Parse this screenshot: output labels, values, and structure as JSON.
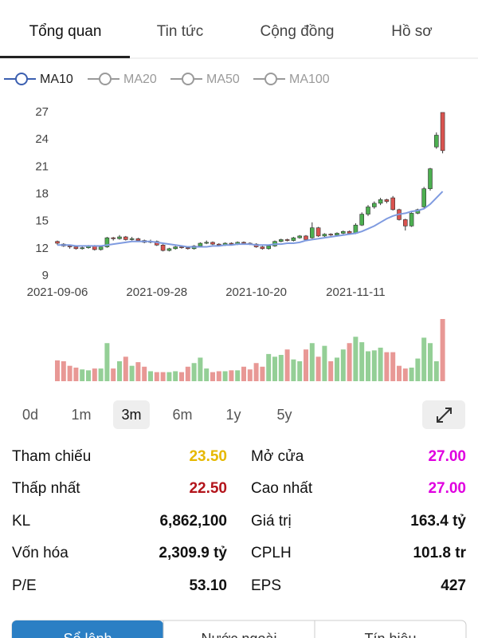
{
  "tabs": {
    "items": [
      "Tổng quan",
      "Tin tức",
      "Cộng đồng",
      "Hồ sơ"
    ],
    "active": 0
  },
  "ma_legend": [
    {
      "name": "MA10",
      "color": "#3b5fb0",
      "active": true
    },
    {
      "name": "MA20",
      "color": "#9a9a9a",
      "active": false
    },
    {
      "name": "MA50",
      "color": "#9a9a9a",
      "active": false
    },
    {
      "name": "MA100",
      "color": "#9a9a9a",
      "active": false
    }
  ],
  "chart_data": {
    "type": "candlestick",
    "categories": [
      "2021-09-06",
      null,
      null,
      null,
      null,
      null,
      null,
      null,
      null,
      null,
      null,
      null,
      null,
      null,
      null,
      null,
      "2021-09-28",
      null,
      null,
      null,
      null,
      null,
      null,
      null,
      null,
      null,
      null,
      null,
      null,
      null,
      null,
      null,
      "2021-10-20",
      null,
      null,
      null,
      null,
      null,
      null,
      null,
      null,
      null,
      null,
      null,
      null,
      null,
      null,
      null,
      "2021-11-11",
      null,
      null,
      null,
      null,
      null,
      null,
      null,
      null,
      null,
      null,
      null,
      null,
      null,
      null
    ],
    "ohlc": [
      [
        12.8,
        12.9,
        12.4,
        12.6
      ],
      [
        12.5,
        12.6,
        12.2,
        12.3
      ],
      [
        12.3,
        12.4,
        12.0,
        12.2
      ],
      [
        12.2,
        12.3,
        11.9,
        12.0
      ],
      [
        12.0,
        12.3,
        11.9,
        12.1
      ],
      [
        12.1,
        12.4,
        12.0,
        12.3
      ],
      [
        12.3,
        12.4,
        11.8,
        11.9
      ],
      [
        11.9,
        12.3,
        11.8,
        12.2
      ],
      [
        12.2,
        13.3,
        12.1,
        13.2
      ],
      [
        13.2,
        13.3,
        12.9,
        13.1
      ],
      [
        13.1,
        13.5,
        13.0,
        13.3
      ],
      [
        13.3,
        13.4,
        12.9,
        13.0
      ],
      [
        13.0,
        13.3,
        12.9,
        13.1
      ],
      [
        13.1,
        13.2,
        12.8,
        12.9
      ],
      [
        12.9,
        13.0,
        12.6,
        12.7
      ],
      [
        12.7,
        13.0,
        12.6,
        12.8
      ],
      [
        12.8,
        12.9,
        12.3,
        12.4
      ],
      [
        12.4,
        12.5,
        11.7,
        11.8
      ],
      [
        11.8,
        12.1,
        11.7,
        12.0
      ],
      [
        12.0,
        12.3,
        11.9,
        12.2
      ],
      [
        12.2,
        12.3,
        12.0,
        12.1
      ],
      [
        12.1,
        12.2,
        11.9,
        12.0
      ],
      [
        12.0,
        12.4,
        11.9,
        12.3
      ],
      [
        12.3,
        12.7,
        12.2,
        12.6
      ],
      [
        12.6,
        12.9,
        12.5,
        12.7
      ],
      [
        12.7,
        12.8,
        12.4,
        12.5
      ],
      [
        12.5,
        12.6,
        12.3,
        12.4
      ],
      [
        12.4,
        12.7,
        12.3,
        12.6
      ],
      [
        12.6,
        12.7,
        12.4,
        12.5
      ],
      [
        12.5,
        12.8,
        12.4,
        12.7
      ],
      [
        12.7,
        12.8,
        12.5,
        12.6
      ],
      [
        12.6,
        12.7,
        12.4,
        12.5
      ],
      [
        12.5,
        12.6,
        12.1,
        12.2
      ],
      [
        12.2,
        12.3,
        11.9,
        12.0
      ],
      [
        12.0,
        12.4,
        11.9,
        12.3
      ],
      [
        12.3,
        12.9,
        12.2,
        12.8
      ],
      [
        12.8,
        13.1,
        12.7,
        13.0
      ],
      [
        13.0,
        13.1,
        12.8,
        12.9
      ],
      [
        12.9,
        13.3,
        12.8,
        13.2
      ],
      [
        13.2,
        13.5,
        13.1,
        13.4
      ],
      [
        13.4,
        13.5,
        12.9,
        13.0
      ],
      [
        13.2,
        14.9,
        13.1,
        14.3
      ],
      [
        14.3,
        14.4,
        13.3,
        13.4
      ],
      [
        13.4,
        13.7,
        13.3,
        13.6
      ],
      [
        13.6,
        13.7,
        13.4,
        13.5
      ],
      [
        13.5,
        13.8,
        13.4,
        13.7
      ],
      [
        13.7,
        14.0,
        13.6,
        13.9
      ],
      [
        13.9,
        14.0,
        13.6,
        13.7
      ],
      [
        13.7,
        14.8,
        13.6,
        14.6
      ],
      [
        14.6,
        16.0,
        14.5,
        15.8
      ],
      [
        15.8,
        16.8,
        15.6,
        16.6
      ],
      [
        16.6,
        17.2,
        16.4,
        17.0
      ],
      [
        17.0,
        17.6,
        16.8,
        17.4
      ],
      [
        17.4,
        17.5,
        17.0,
        17.2
      ],
      [
        17.6,
        17.8,
        16.2,
        16.3
      ],
      [
        16.3,
        16.4,
        15.1,
        15.2
      ],
      [
        15.2,
        15.3,
        14.0,
        14.5
      ],
      [
        14.5,
        16.0,
        14.4,
        15.9
      ],
      [
        15.9,
        16.4,
        15.8,
        16.3
      ],
      [
        16.6,
        18.8,
        16.5,
        18.6
      ],
      [
        18.6,
        20.9,
        18.4,
        20.8
      ],
      [
        23.2,
        24.8,
        23.0,
        24.5
      ],
      [
        27.0,
        27.0,
        22.5,
        22.8
      ]
    ],
    "volume": [
      2.3,
      2.2,
      1.7,
      1.5,
      1.3,
      1.2,
      1.4,
      1.4,
      4.2,
      1.4,
      2.2,
      2.7,
      1.7,
      2.1,
      1.6,
      1.1,
      1.0,
      1.0,
      1.0,
      1.1,
      1.0,
      1.6,
      2.0,
      2.6,
      1.4,
      1.0,
      1.1,
      1.1,
      1.2,
      1.2,
      1.6,
      1.3,
      2.0,
      1.6,
      3.0,
      2.7,
      2.9,
      3.5,
      2.4,
      2.2,
      3.5,
      4.2,
      2.7,
      3.9,
      2.2,
      2.6,
      3.5,
      4.2,
      4.9,
      4.3,
      3.3,
      3.4,
      3.7,
      3.2,
      3.2,
      1.7,
      1.4,
      1.5,
      2.5,
      4.8,
      4.2,
      2.2,
      6.86
    ],
    "ma": {
      "name": "MA10",
      "color": "#7f9be0",
      "values": [
        12.4,
        12.4,
        12.4,
        12.3,
        12.3,
        12.3,
        12.3,
        12.3,
        12.4,
        12.5,
        12.6,
        12.7,
        12.8,
        12.8,
        12.8,
        12.8,
        12.7,
        12.6,
        12.5,
        12.4,
        12.3,
        12.2,
        12.2,
        12.2,
        12.2,
        12.3,
        12.3,
        12.4,
        12.4,
        12.5,
        12.5,
        12.5,
        12.4,
        12.4,
        12.4,
        12.5,
        12.5,
        12.6,
        12.6,
        12.7,
        12.9,
        13.0,
        13.1,
        13.2,
        13.3,
        13.4,
        13.5,
        13.6,
        13.7,
        13.9,
        14.2,
        14.5,
        14.9,
        15.3,
        15.6,
        15.8,
        15.9,
        16.1,
        16.2,
        16.4,
        16.9,
        17.6,
        18.3
      ]
    },
    "up_color": "#4caf50",
    "down_color": "#d9534f",
    "ylim": [
      9,
      27
    ],
    "yticks": [
      9,
      12,
      15,
      18,
      21,
      24,
      27
    ],
    "grid": false
  },
  "periods": {
    "items": [
      "0d",
      "1m",
      "3m",
      "6m",
      "1y",
      "5y"
    ],
    "active": 2
  },
  "stats": {
    "left": [
      {
        "label": "Tham chiếu",
        "value": "23.50",
        "color": "#e6b800"
      },
      {
        "label": "Thấp nhất",
        "value": "22.50",
        "color": "#b3141b"
      },
      {
        "label": "KL",
        "value": "6,862,100",
        "color": "#111111"
      },
      {
        "label": "Vốn hóa",
        "value": "2,309.9 tỷ",
        "color": "#111111"
      },
      {
        "label": "P/E",
        "value": "53.10",
        "color": "#111111"
      }
    ],
    "right": [
      {
        "label": "Mở cửa",
        "value": "27.00",
        "color": "#e000e0"
      },
      {
        "label": "Cao nhất",
        "value": "27.00",
        "color": "#e000e0"
      },
      {
        "label": "Giá trị",
        "value": "163.4 tỷ",
        "color": "#111111"
      },
      {
        "label": "CPLH",
        "value": "101.8 tr",
        "color": "#111111"
      },
      {
        "label": "EPS",
        "value": "427",
        "color": "#111111"
      }
    ]
  },
  "bottom_tabs": {
    "items": [
      "Sổ lệnh",
      "Nước ngoài",
      "Tín hiệu"
    ],
    "active": 0
  }
}
